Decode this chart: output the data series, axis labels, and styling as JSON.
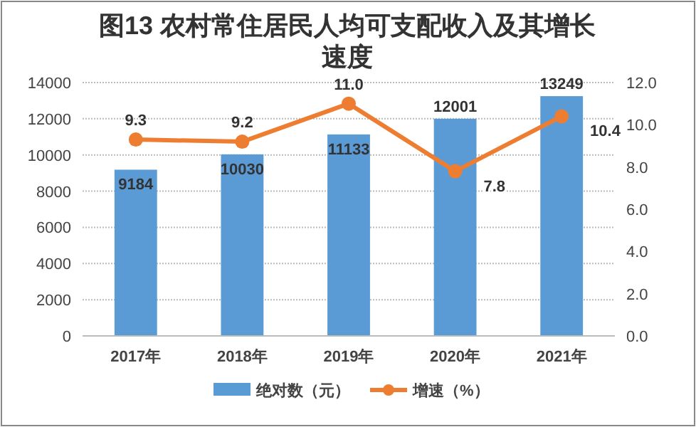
{
  "chart_data": {
    "type": "bar",
    "title": "图13 农村常住居民人均可支配收入及其增长速度",
    "categories": [
      "2017年",
      "2018年",
      "2019年",
      "2020年",
      "2021年"
    ],
    "series": [
      {
        "name": "绝对数（元）",
        "color": "#5b9bd5",
        "values": [
          9184,
          10030,
          11133,
          12001,
          13249
        ]
      },
      {
        "name": "增速（%）",
        "type": "line",
        "axis": "y2",
        "color": "#ed7d31",
        "marker": "circle",
        "values": [
          9.3,
          9.2,
          11.0,
          7.8,
          10.4
        ],
        "value_labels": [
          "9.3",
          "9.2",
          "11.0",
          "7.8",
          "10.4"
        ]
      }
    ],
    "ylim": [
      0,
      14000
    ],
    "yticks": [
      0,
      2000,
      4000,
      6000,
      8000,
      10000,
      12000,
      14000
    ],
    "y2lim": [
      0,
      12
    ],
    "y2ticks": [
      {
        "value": 0,
        "label": "0.0"
      },
      {
        "value": 2,
        "label": "2.0"
      },
      {
        "value": 4,
        "label": "4.0"
      },
      {
        "value": 6,
        "label": "6.0"
      },
      {
        "value": 8,
        "label": "8.0"
      },
      {
        "value": 10,
        "label": "10.0"
      },
      {
        "value": 12,
        "label": "12.0"
      }
    ],
    "data_labels": true,
    "grid": "y",
    "legend": "bottom"
  }
}
